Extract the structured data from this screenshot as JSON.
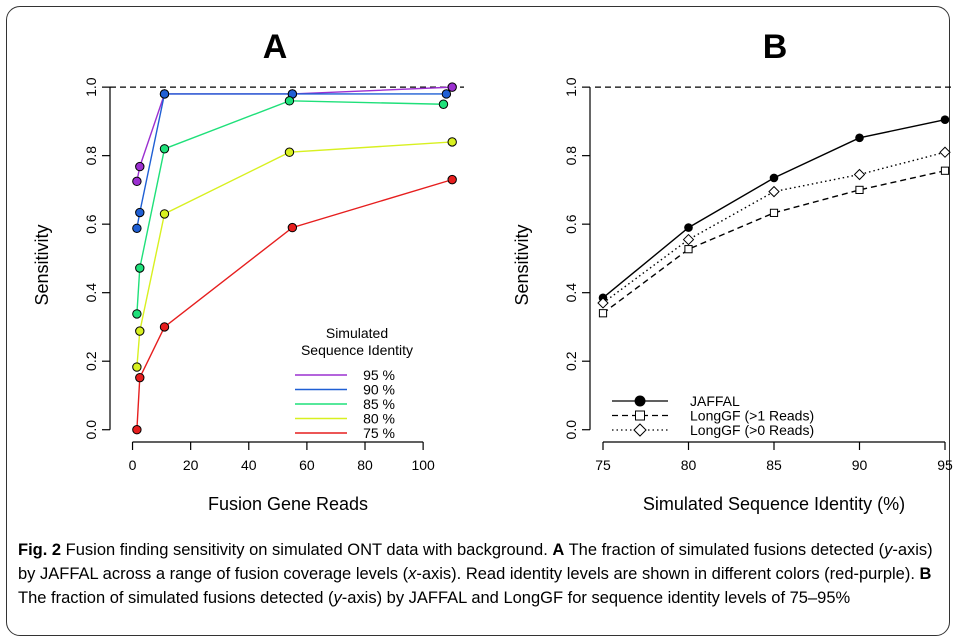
{
  "figure": {
    "caption": {
      "fig_label": "Fig. 2",
      "s1": " Fusion finding sensitivity on simulated ONT data with background. ",
      "a_label": "A",
      "s2": " The fraction of simulated fusions detected (",
      "y_axis_word": "y",
      "s3": "-axis) by JAFFAL across a range of fusion coverage levels (",
      "x_axis_word": "x",
      "s4": "-axis). Read identity levels are shown in different colors (red-purple). ",
      "b_label": "B",
      "s5": " The fraction of simulated fusions detected (",
      "y_axis_word2": "y",
      "s6": "-axis) by JAFFAL and LongGF for sequence identity levels of 75–95%"
    }
  },
  "chart_data": [
    {
      "type": "line",
      "title": "A",
      "xlabel": "Fusion Gene Reads",
      "ylabel": "Sensitivity",
      "xlim": [
        -5,
        112
      ],
      "ylim": [
        -0.03,
        1.05
      ],
      "xticks": [
        0,
        20,
        40,
        60,
        80,
        100
      ],
      "yticks": [
        0.0,
        0.2,
        0.4,
        0.6,
        0.8,
        1.0
      ],
      "ytick_labels": [
        "0.0",
        "0.2",
        "0.4",
        "0.6",
        "0.8",
        "1.0"
      ],
      "reference_line": 1.0,
      "legend": {
        "title_lines": [
          "Simulated",
          "Sequence Identity"
        ],
        "placement": "bottom-right"
      },
      "series": [
        {
          "name": "95 %",
          "color": "#9B30D0",
          "x": [
            1.5,
            2.5,
            11,
            55,
            110
          ],
          "y": [
            0.725,
            0.768,
            0.98,
            0.98,
            1.0
          ]
        },
        {
          "name": "90 %",
          "color": "#1F5FD4",
          "x": [
            1.5,
            2.5,
            11,
            55,
            108
          ],
          "y": [
            0.588,
            0.634,
            0.98,
            0.98,
            0.98
          ]
        },
        {
          "name": "85 %",
          "color": "#1FE07A",
          "x": [
            1.5,
            2.5,
            11,
            54,
            107
          ],
          "y": [
            0.338,
            0.472,
            0.82,
            0.96,
            0.95
          ]
        },
        {
          "name": "80 %",
          "color": "#D8F020",
          "x": [
            1.5,
            2.5,
            11,
            54,
            110
          ],
          "y": [
            0.183,
            0.288,
            0.63,
            0.81,
            0.84
          ]
        },
        {
          "name": "75 %",
          "color": "#E61E1E",
          "x": [
            1.5,
            2.5,
            11,
            55,
            110
          ],
          "y": [
            0.0,
            0.152,
            0.3,
            0.59,
            0.73
          ]
        }
      ]
    },
    {
      "type": "line",
      "title": "B",
      "xlabel": "Simulated Sequence Identity (%)",
      "ylabel": "Sensitivity",
      "xlim": [
        75,
        95
      ],
      "ylim": [
        -0.03,
        1.05
      ],
      "xticks": [
        75,
        80,
        85,
        90,
        95
      ],
      "yticks": [
        0.0,
        0.2,
        0.4,
        0.6,
        0.8,
        1.0
      ],
      "ytick_labels": [
        "0.0",
        "0.2",
        "0.4",
        "0.6",
        "0.8",
        "1.0"
      ],
      "reference_line": 1.0,
      "legend": {
        "placement": "bottom-left"
      },
      "series": [
        {
          "name": "JAFFAL",
          "marker": "filled-circle",
          "line": "solid",
          "x": [
            75,
            80,
            85,
            90,
            95
          ],
          "y": [
            0.385,
            0.59,
            0.735,
            0.852,
            0.905
          ]
        },
        {
          "name": "LongGF (>1 Reads)",
          "marker": "square",
          "line": "dashed",
          "x": [
            75,
            80,
            85,
            90,
            95
          ],
          "y": [
            0.34,
            0.527,
            0.633,
            0.7,
            0.756
          ]
        },
        {
          "name": "LongGF (>0 Reads)",
          "marker": "diamond",
          "line": "dotted",
          "x": [
            75,
            80,
            85,
            90,
            95
          ],
          "y": [
            0.37,
            0.555,
            0.695,
            0.745,
            0.81
          ]
        }
      ]
    }
  ]
}
